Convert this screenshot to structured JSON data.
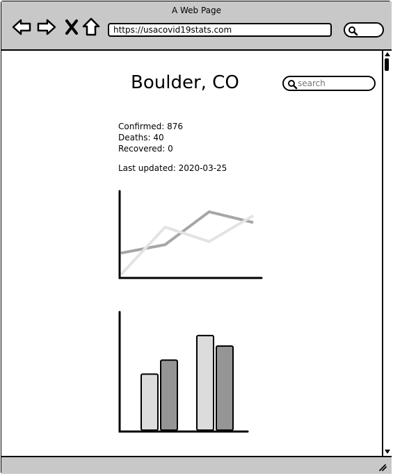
{
  "window": {
    "title": "A Web Page"
  },
  "browser": {
    "url": "https://usacovid19stats.com"
  },
  "page": {
    "title": "Boulder, CO",
    "search_placeholder": "search",
    "stats": {
      "confirmed": "Confirmed: 876",
      "deaths": "Deaths: 40",
      "recovered": "Recovered: 0"
    },
    "last_updated": "Last updated: 2020-03-25"
  },
  "chart_data": [
    {
      "type": "line",
      "x": [
        0,
        1,
        2,
        3
      ],
      "series": [
        {
          "color": "#e3e3e3",
          "values": [
            0,
            62,
            43,
            77
          ]
        },
        {
          "color": "#a6a6a6",
          "values": [
            28,
            39,
            82,
            68
          ]
        }
      ],
      "ylim": [
        0,
        100
      ]
    },
    {
      "type": "bar",
      "categories": [
        "",
        ""
      ],
      "series": [
        {
          "color": "#dcdcdc",
          "values": [
            48,
            81
          ]
        },
        {
          "color": "#959595",
          "values": [
            60,
            72
          ]
        }
      ],
      "ylim": [
        0,
        100
      ]
    }
  ]
}
